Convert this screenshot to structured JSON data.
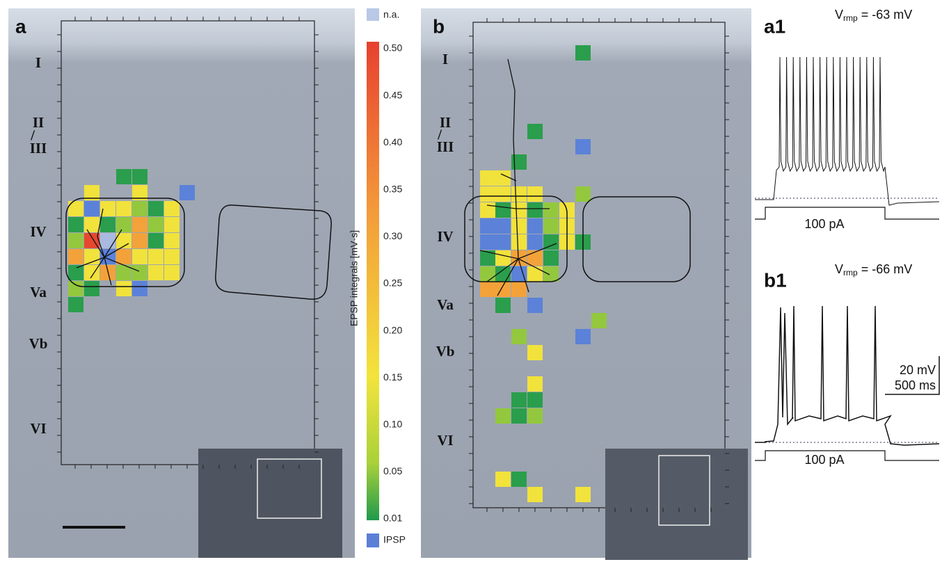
{
  "figure": {
    "panel_a": {
      "label": "a"
    },
    "panel_b": {
      "label": "b"
    },
    "layers": {
      "labels": [
        "I",
        "II",
        "III",
        "IV",
        "Va",
        "Vb",
        "VI"
      ],
      "separator": "/"
    },
    "colorbar": {
      "na_label": "n.a.",
      "axis_label": "EPSP integrals [mV·s]",
      "tick_labels": [
        "0.50",
        "0.45",
        "0.40",
        "0.35",
        "0.30",
        "0.25",
        "0.20",
        "0.15",
        "0.10",
        "0.05",
        "0.01"
      ],
      "ipsp_label": "IPSP"
    },
    "trace_a1": {
      "label": "a1",
      "symbol": "V",
      "subscript": "rmp",
      "value": " = -63 mV",
      "stimulus": "100 pA"
    },
    "trace_b1": {
      "label": "b1",
      "symbol": "V",
      "subscript": "rmp",
      "value": " = -66 mV",
      "stimulus": "100 pA"
    },
    "scale_bar": {
      "voltage": "20 mV",
      "time": "500 ms"
    }
  }
}
